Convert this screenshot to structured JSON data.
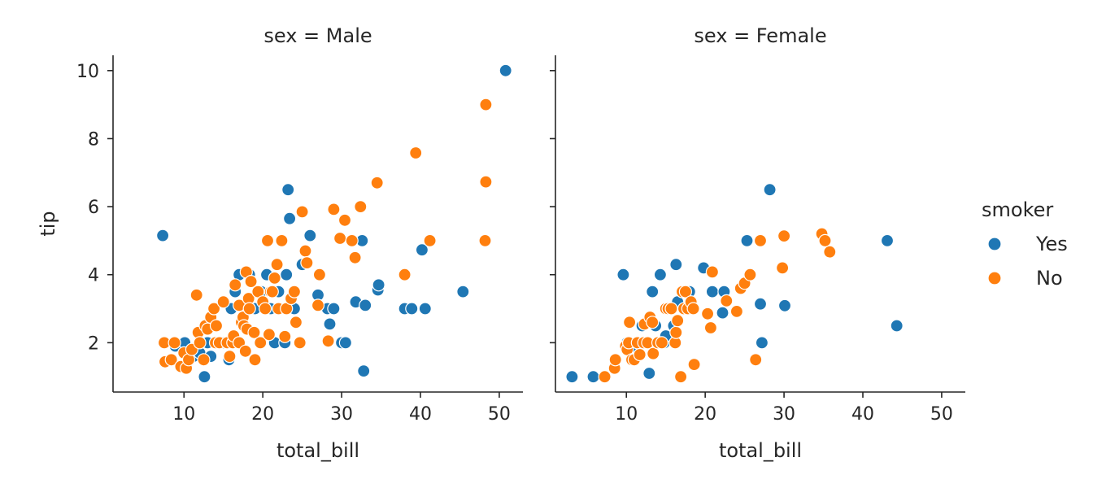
{
  "chart_data": {
    "type": "scatter",
    "facet_variable": "sex",
    "xlabel": "total_bill",
    "ylabel": "tip",
    "xlim": [
      1,
      53
    ],
    "ylim": [
      0.55,
      10.45
    ],
    "xticks": [
      10,
      20,
      30,
      40,
      50
    ],
    "yticks": [
      2,
      4,
      6,
      8,
      10
    ],
    "legend": {
      "title": "smoker",
      "placement": "right",
      "entries": [
        "Yes",
        "No"
      ]
    },
    "colors": {
      "Yes": "#1f77b4",
      "No": "#ff7f0e"
    },
    "facets": [
      {
        "title": "sex = Male",
        "series": [
          {
            "name": "Yes",
            "points": [
              [
                7.3,
                5.15
              ],
              [
                8.9,
                1.9
              ],
              [
                10.1,
                2.0
              ],
              [
                10.5,
                1.5
              ],
              [
                11.2,
                1.6
              ],
              [
                12.0,
                1.7
              ],
              [
                12.6,
                1.0
              ],
              [
                13.0,
                2.0
              ],
              [
                13.4,
                1.6
              ],
              [
                14.5,
                2.0
              ],
              [
                15.0,
                2.0
              ],
              [
                15.7,
                1.5
              ],
              [
                16.0,
                3.0
              ],
              [
                16.5,
                3.5
              ],
              [
                17.0,
                4.0
              ],
              [
                17.5,
                2.5
              ],
              [
                18.0,
                3.0
              ],
              [
                18.3,
                4.0
              ],
              [
                19.0,
                3.0
              ],
              [
                19.8,
                3.5
              ],
              [
                20.5,
                4.0
              ],
              [
                21.0,
                3.0
              ],
              [
                21.5,
                2.0
              ],
              [
                22.0,
                3.5
              ],
              [
                22.8,
                2.0
              ],
              [
                23.0,
                4.0
              ],
              [
                23.2,
                6.5
              ],
              [
                23.4,
                5.65
              ],
              [
                24.0,
                3.0
              ],
              [
                25.0,
                4.3
              ],
              [
                26.0,
                5.15
              ],
              [
                27.0,
                3.4
              ],
              [
                28.2,
                3.0
              ],
              [
                28.5,
                2.55
              ],
              [
                29.0,
                3.0
              ],
              [
                30.0,
                2.0
              ],
              [
                30.5,
                2.0
              ],
              [
                31.8,
                3.2
              ],
              [
                32.6,
                5.0
              ],
              [
                32.8,
                1.17
              ],
              [
                33.0,
                3.1
              ],
              [
                34.6,
                3.55
              ],
              [
                34.7,
                3.7
              ],
              [
                38.0,
                3.0
              ],
              [
                38.9,
                3.0
              ],
              [
                40.2,
                4.73
              ],
              [
                40.6,
                3.0
              ],
              [
                45.4,
                3.5
              ],
              [
                50.8,
                10.0
              ]
            ]
          },
          {
            "name": "No",
            "points": [
              [
                7.5,
                2.0
              ],
              [
                7.6,
                1.44
              ],
              [
                8.4,
                1.5
              ],
              [
                8.8,
                2.0
              ],
              [
                9.6,
                1.3
              ],
              [
                10.0,
                1.7
              ],
              [
                10.3,
                1.25
              ],
              [
                10.6,
                1.5
              ],
              [
                11.0,
                1.8
              ],
              [
                11.6,
                3.4
              ],
              [
                11.8,
                2.3
              ],
              [
                12.0,
                2.0
              ],
              [
                12.5,
                1.5
              ],
              [
                12.7,
                2.5
              ],
              [
                13.0,
                2.4
              ],
              [
                13.4,
                2.75
              ],
              [
                13.8,
                3.0
              ],
              [
                14.0,
                2.0
              ],
              [
                14.1,
                2.5
              ],
              [
                14.5,
                2.0
              ],
              [
                15.0,
                3.2
              ],
              [
                15.5,
                2.0
              ],
              [
                15.8,
                1.6
              ],
              [
                16.2,
                2.0
              ],
              [
                16.3,
                2.2
              ],
              [
                16.5,
                3.7
              ],
              [
                17.0,
                2.0
              ],
              [
                17.0,
                3.1
              ],
              [
                17.3,
                2.6
              ],
              [
                17.5,
                2.75
              ],
              [
                17.6,
                2.5
              ],
              [
                17.8,
                1.75
              ],
              [
                17.9,
                4.08
              ],
              [
                18.0,
                2.4
              ],
              [
                18.2,
                3.3
              ],
              [
                18.3,
                3.0
              ],
              [
                18.5,
                3.8
              ],
              [
                18.9,
                2.3
              ],
              [
                19.0,
                1.5
              ],
              [
                19.4,
                3.5
              ],
              [
                19.7,
                2.0
              ],
              [
                20.0,
                3.2
              ],
              [
                20.3,
                3.0
              ],
              [
                20.6,
                5.0
              ],
              [
                20.8,
                2.24
              ],
              [
                21.0,
                3.5
              ],
              [
                21.2,
                3.5
              ],
              [
                21.5,
                3.9
              ],
              [
                21.8,
                4.3
              ],
              [
                22.0,
                3.0
              ],
              [
                22.4,
                5.0
              ],
              [
                22.8,
                2.18
              ],
              [
                23.0,
                3.0
              ],
              [
                23.6,
                3.3
              ],
              [
                24.0,
                3.5
              ],
              [
                24.2,
                2.6
              ],
              [
                24.7,
                2.0
              ],
              [
                25.0,
                5.85
              ],
              [
                25.4,
                4.7
              ],
              [
                25.6,
                4.35
              ],
              [
                27.0,
                3.1
              ],
              [
                27.2,
                4.0
              ],
              [
                28.3,
                2.05
              ],
              [
                29.0,
                5.92
              ],
              [
                29.8,
                5.07
              ],
              [
                30.4,
                5.6
              ],
              [
                31.3,
                5.0
              ],
              [
                31.7,
                4.5
              ],
              [
                32.4,
                6.0
              ],
              [
                34.5,
                6.7
              ],
              [
                38.0,
                4.0
              ],
              [
                39.4,
                7.58
              ],
              [
                41.2,
                5.0
              ],
              [
                48.2,
                5.0
              ],
              [
                48.3,
                9.0
              ],
              [
                48.3,
                6.73
              ]
            ]
          }
        ]
      },
      {
        "title": "sex = Female",
        "series": [
          {
            "name": "Yes",
            "points": [
              [
                3.1,
                1.0
              ],
              [
                5.8,
                1.0
              ],
              [
                9.6,
                4.0
              ],
              [
                10.1,
                2.0
              ],
              [
                11.0,
                1.9
              ],
              [
                12.0,
                2.5
              ],
              [
                12.5,
                2.0
              ],
              [
                12.9,
                1.1
              ],
              [
                13.3,
                3.5
              ],
              [
                13.7,
                2.5
              ],
              [
                14.3,
                4.0
              ],
              [
                14.8,
                2.0
              ],
              [
                15.0,
                2.2
              ],
              [
                15.7,
                3.0
              ],
              [
                16.0,
                2.5
              ],
              [
                16.3,
                4.3
              ],
              [
                16.5,
                3.2
              ],
              [
                17.5,
                3.5
              ],
              [
                18.0,
                3.5
              ],
              [
                19.8,
                4.2
              ],
              [
                20.9,
                3.5
              ],
              [
                22.2,
                2.88
              ],
              [
                22.4,
                3.5
              ],
              [
                25.3,
                5.0
              ],
              [
                27.0,
                3.14
              ],
              [
                27.2,
                2.0
              ],
              [
                28.2,
                6.5
              ],
              [
                30.1,
                3.09
              ],
              [
                43.1,
                5.0
              ],
              [
                44.3,
                2.5
              ]
            ]
          },
          {
            "name": "No",
            "points": [
              [
                7.25,
                1.0
              ],
              [
                8.5,
                1.25
              ],
              [
                8.6,
                1.5
              ],
              [
                9.9,
                1.9
              ],
              [
                10.1,
                1.8
              ],
              [
                10.3,
                2.0
              ],
              [
                10.4,
                2.6
              ],
              [
                10.7,
                1.5
              ],
              [
                11.0,
                1.5
              ],
              [
                11.4,
                2.0
              ],
              [
                11.7,
                1.65
              ],
              [
                12.2,
                2.0
              ],
              [
                12.3,
                2.55
              ],
              [
                12.7,
                2.0
              ],
              [
                13.0,
                2.75
              ],
              [
                13.3,
                2.6
              ],
              [
                13.4,
                1.68
              ],
              [
                14.0,
                2.0
              ],
              [
                14.5,
                2.0
              ],
              [
                15.0,
                3.0
              ],
              [
                15.3,
                3.0
              ],
              [
                15.7,
                3.0
              ],
              [
                16.2,
                2.0
              ],
              [
                16.3,
                2.3
              ],
              [
                16.5,
                2.65
              ],
              [
                16.9,
                1.0
              ],
              [
                17.1,
                3.5
              ],
              [
                17.3,
                3.0
              ],
              [
                17.5,
                3.5
              ],
              [
                17.8,
                3.0
              ],
              [
                18.2,
                3.2
              ],
              [
                18.5,
                3.0
              ],
              [
                18.6,
                1.36
              ],
              [
                20.3,
                2.85
              ],
              [
                20.7,
                2.44
              ],
              [
                20.9,
                4.08
              ],
              [
                22.7,
                3.23
              ],
              [
                24.0,
                2.92
              ],
              [
                24.5,
                3.6
              ],
              [
                25.0,
                3.75
              ],
              [
                25.7,
                4.0
              ],
              [
                26.4,
                1.5
              ],
              [
                27.0,
                5.0
              ],
              [
                29.8,
                4.2
              ],
              [
                30.0,
                5.14
              ],
              [
                34.8,
                5.2
              ],
              [
                35.2,
                5.0
              ],
              [
                35.8,
                4.67
              ]
            ]
          }
        ]
      }
    ]
  }
}
